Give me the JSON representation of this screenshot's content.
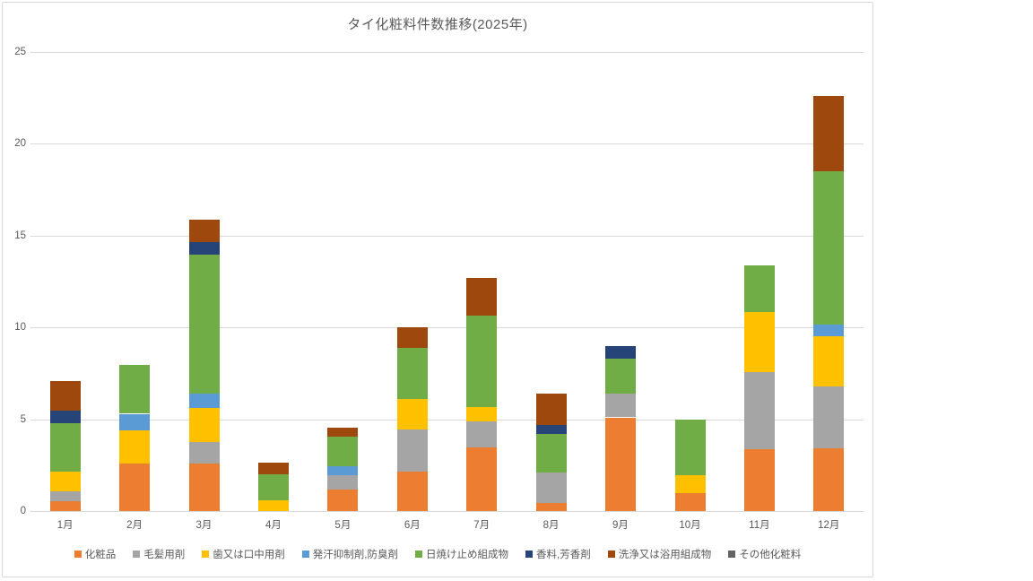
{
  "chart_data": {
    "type": "bar",
    "stacked": true,
    "title": "タイ化粧料件数推移(2025年)",
    "xlabel": "",
    "ylabel": "",
    "ylim": [
      0,
      25
    ],
    "yticks": [
      0,
      5,
      10,
      15,
      20,
      25
    ],
    "grid": true,
    "legend_position": "bottom",
    "categories": [
      "1月",
      "2月",
      "3月",
      "4月",
      "5月",
      "6月",
      "7月",
      "8月",
      "9月",
      "10月",
      "11月",
      "12月"
    ],
    "series": [
      {
        "name": "化粧品",
        "color": "#ED7D31",
        "values": [
          0.55,
          2.6,
          2.6,
          0,
          1.15,
          2.15,
          3.45,
          0.45,
          5.1,
          1.0,
          3.35,
          3.4
        ]
      },
      {
        "name": "毛髪用剤",
        "color": "#A5A5A5",
        "values": [
          0.55,
          0,
          1.15,
          0,
          0.8,
          2.3,
          1.45,
          1.65,
          1.3,
          0,
          4.2,
          3.4
        ]
      },
      {
        "name": "歯又は口中用剤",
        "color": "#FFC000",
        "values": [
          1.05,
          1.8,
          1.85,
          0.6,
          0,
          1.65,
          0.75,
          0,
          0,
          0.95,
          3.3,
          2.7
        ]
      },
      {
        "name": "発汗抑制剤,防臭剤",
        "color": "#5B9BD5",
        "values": [
          0,
          0.9,
          0.8,
          0,
          0.5,
          0,
          0,
          0,
          0,
          0,
          0,
          0.65
        ]
      },
      {
        "name": "日焼け止め組成物",
        "color": "#70AD47",
        "values": [
          2.65,
          2.65,
          7.55,
          1.4,
          1.6,
          2.8,
          5.0,
          2.1,
          1.9,
          3.05,
          2.55,
          8.35
        ]
      },
      {
        "name": "香料,芳香剤",
        "color": "#264478",
        "values": [
          0.65,
          0,
          0.7,
          0,
          0,
          0,
          0,
          0.5,
          0.7,
          0,
          0,
          0
        ]
      },
      {
        "name": "洗浄又は浴用組成物",
        "color": "#9E480E",
        "values": [
          1.65,
          0,
          1.2,
          0.65,
          0.5,
          1.1,
          2.05,
          1.7,
          0,
          0,
          0,
          4.1
        ]
      },
      {
        "name": "その他化粧料",
        "color": "#636363",
        "values": [
          0,
          0,
          0,
          0,
          0,
          0,
          0,
          0,
          0,
          0,
          0,
          0
        ]
      }
    ],
    "totals": [
      7.1,
      7.95,
      15.85,
      2.65,
      4.55,
      10.0,
      12.7,
      6.4,
      9.0,
      5.0,
      13.4,
      22.6
    ]
  },
  "style": {
    "gridline_color": "#d9d9d9",
    "border_color": "#d9d9d9",
    "text_color": "#595959",
    "background": "#ffffff"
  }
}
